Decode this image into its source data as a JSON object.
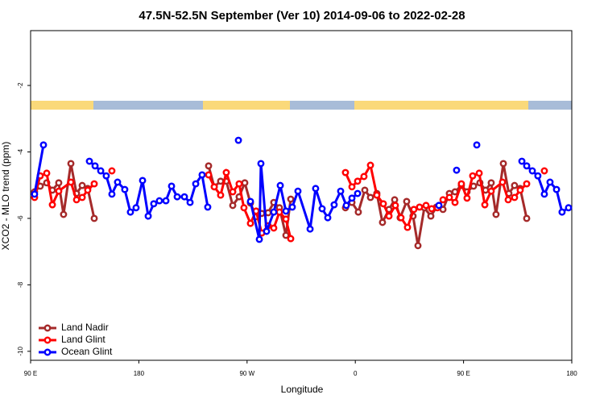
{
  "chart_data": {
    "type": "line",
    "title": "47.5N-52.5N September (Ver 10)   2014-09-06 to 2022-02-28",
    "xlabel": "Longitude",
    "ylabel": "XCO2 - MLO trend (ppm)",
    "xlim": [
      90,
      540
    ],
    "ylim": [
      -10.27,
      -0.35
    ],
    "xticks": [
      {
        "value": 90,
        "label": "90 E"
      },
      {
        "value": 180,
        "label": "180"
      },
      {
        "value": 270,
        "label": "90 W"
      },
      {
        "value": 360,
        "label": "0"
      },
      {
        "value": 450,
        "label": "90 E"
      },
      {
        "value": 540,
        "label": "180"
      }
    ],
    "yticks": [
      -2,
      -4,
      -6,
      -8,
      -10
    ],
    "legend": "bottomleft",
    "series": [
      {
        "name": "Land Nadir",
        "color": "#a52a2a",
        "x": [
          93.3,
          98.0,
          103.4,
          108.1,
          113.4,
          117.4,
          123.5,
          128.2,
          132.9,
          137.5,
          142.9,
          null,
          238.0,
          242.7,
          248.0,
          252.7,
          258.1,
          263.4,
          268.1,
          272.8,
          277.5,
          282.2,
          287.5,
          292.2,
          296.9,
          302.3,
          306.3,
          null,
          351.8,
          357.2,
          362.5,
          367.9,
          372.6,
          377.9,
          382.6,
          388.0,
          392.7,
          397.3,
          402.7,
          408.0,
          412.1,
          417.4,
          422.8,
          427.5,
          432.9,
          438.2,
          442.9,
          448.2,
          452.9,
          458.3,
          463.6,
          468.3,
          473.0,
          477.0,
          483.1,
          487.7,
          492.4,
          497.1,
          502.5
        ],
        "values": [
          -5.2,
          -5.03,
          -4.93,
          -5.15,
          -4.93,
          -5.88,
          -4.35,
          -5.25,
          -5.01,
          -5.1,
          -6.0,
          null,
          -4.42,
          -5.05,
          -4.88,
          -4.88,
          -5.61,
          -5.35,
          -4.93,
          -5.54,
          -5.95,
          -5.85,
          -5.83,
          -5.52,
          -5.68,
          -6.51,
          -5.42,
          null,
          -5.68,
          -5.52,
          -5.81,
          -5.15,
          -5.37,
          -5.25,
          -6.12,
          -5.73,
          -5.44,
          -5.98,
          -5.49,
          -5.93,
          -6.82,
          -5.68,
          -5.93,
          -5.66,
          -5.73,
          -5.25,
          -5.2,
          -5.01,
          -5.2,
          -5.03,
          -4.93,
          -5.15,
          -4.93,
          -5.88,
          -4.35,
          -5.25,
          -5.01,
          -5.1,
          -6.0
        ]
      },
      {
        "name": "Land Glint",
        "color": "#ff0000",
        "x": [
          93.3,
          98.0,
          103.4,
          108.1,
          113.4,
          123.5,
          128.2,
          132.9,
          137.5,
          142.9,
          null,
          157.6,
          null,
          238.0,
          242.7,
          248.0,
          252.7,
          258.1,
          263.4,
          267.4,
          272.8,
          277.5,
          282.2,
          287.5,
          292.2,
          296.9,
          302.3,
          306.3,
          null,
          351.8,
          357.2,
          361.9,
          367.2,
          372.6,
          377.9,
          383.3,
          388.0,
          393.3,
          398.0,
          403.4,
          408.7,
          413.4,
          418.8,
          423.5,
          428.2,
          432.9,
          438.2,
          442.9,
          448.2,
          452.9,
          457.6,
          463.0,
          467.7,
          473.0,
          482.4,
          487.1,
          492.4,
          497.1,
          502.5,
          null,
          517.2
        ],
        "values": [
          -5.37,
          -4.72,
          -4.64,
          -5.59,
          -5.18,
          -4.91,
          -5.44,
          -5.37,
          -5.15,
          -4.96,
          null,
          -4.57,
          null,
          -4.69,
          -5.05,
          -5.3,
          -4.62,
          -5.2,
          -4.96,
          -5.68,
          -6.15,
          -5.78,
          -6.44,
          -6.22,
          -6.29,
          -5.81,
          -6.02,
          -6.61,
          null,
          -4.62,
          -5.05,
          -4.88,
          -4.74,
          -4.4,
          -5.3,
          -5.56,
          -5.93,
          -5.61,
          -5.98,
          -6.27,
          -5.73,
          -5.66,
          -5.61,
          -5.71,
          -5.68,
          -5.44,
          -5.37,
          -5.52,
          -4.96,
          -5.39,
          -4.72,
          -4.64,
          -5.59,
          -5.18,
          -4.91,
          -5.44,
          -5.37,
          -5.15,
          -4.96,
          null,
          -4.57
        ]
      },
      {
        "name": "Ocean Glint",
        "color": "#0000ff",
        "x": [
          93.3,
          100.7,
          null,
          138.9,
          143.6,
          148.3,
          152.9,
          157.6,
          162.3,
          168.3,
          173.0,
          177.7,
          183.1,
          187.8,
          192.4,
          197.1,
          202.5,
          207.2,
          211.9,
          217.9,
          222.6,
          227.3,
          232.6,
          237.3,
          null,
          262.8,
          null,
          272.8,
          280.2,
          281.5,
          286.2,
          292.2,
          297.6,
          302.3,
          307.6,
          312.3,
          322.4,
          327.0,
          332.4,
          337.1,
          342.4,
          347.8,
          352.5,
          357.2,
          361.9,
          null,
          429.5,
          null,
          444.2,
          null,
          461.0,
          null,
          498.5,
          502.5,
          507.2,
          511.8,
          517.2,
          521.9,
          527.3,
          531.9,
          537.3
        ],
        "values": [
          -5.27,
          -3.79,
          null,
          -4.28,
          -4.42,
          -4.57,
          -4.72,
          -5.27,
          -4.91,
          -5.13,
          -5.81,
          -5.68,
          -4.86,
          -5.93,
          -5.56,
          -5.47,
          -5.47,
          -5.03,
          -5.35,
          -5.35,
          -5.52,
          -4.96,
          -4.69,
          -5.66,
          null,
          -3.65,
          null,
          -5.49,
          -6.63,
          -4.35,
          -6.39,
          -5.81,
          -5.01,
          -5.78,
          -5.66,
          -5.18,
          -6.32,
          -5.1,
          -5.71,
          -5.98,
          -5.59,
          -5.18,
          -5.61,
          -5.39,
          -5.25,
          null,
          -5.61,
          null,
          -4.55,
          null,
          -3.79,
          null,
          -4.28,
          -4.42,
          -4.57,
          -4.72,
          -5.27,
          -4.91,
          -5.13,
          -5.81,
          -5.68
        ]
      }
    ]
  }
}
